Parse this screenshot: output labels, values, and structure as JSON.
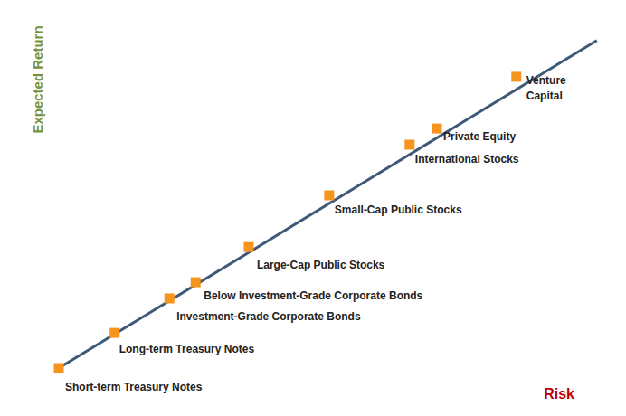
{
  "chart_data": {
    "type": "scatter",
    "xlabel": "Risk",
    "ylabel": "Expected Return",
    "tick_labels": false,
    "grid": false,
    "xlim": [
      0,
      100
    ],
    "ylim": [
      0,
      100
    ],
    "marker": "square",
    "color": "#f7941d",
    "labels": [
      "Short-term Treasury Notes",
      "Long-term Treasury Notes",
      "Investment-Grade Corporate Bonds",
      "Below Investment-Grade Corporate Bonds",
      "Large-Cap Public Stocks",
      "Small-Cap Public Stocks",
      "International Stocks",
      "Private Equity",
      "Venture Capital"
    ],
    "x": [
      0,
      10.2,
      20.2,
      25.0,
      34.7,
      49.4,
      64.1,
      69.1,
      83.6
    ],
    "values": [
      0,
      10.0,
      19.8,
      24.4,
      34.4,
      49.1,
      63.5,
      68.1,
      82.8
    ],
    "line": {
      "type": "line",
      "color": "#3e5a78",
      "x": [
        0,
        98.3
      ],
      "values": [
        0,
        93.1
      ]
    }
  }
}
